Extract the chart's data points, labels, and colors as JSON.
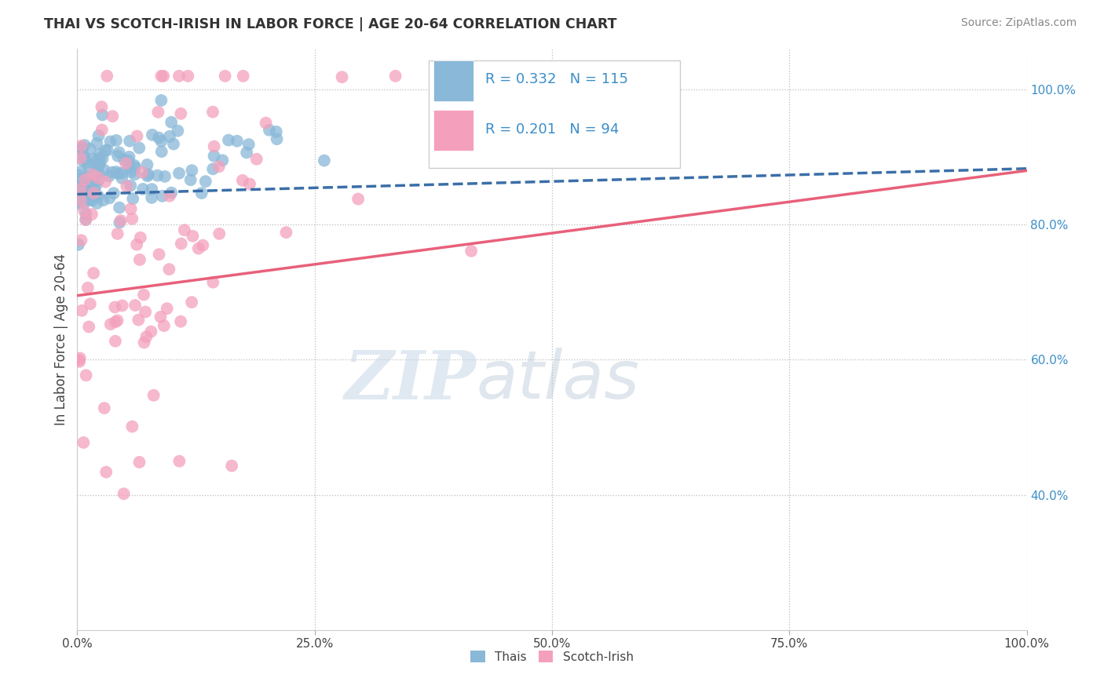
{
  "title": "THAI VS SCOTCH-IRISH IN LABOR FORCE | AGE 20-64 CORRELATION CHART",
  "source": "Source: ZipAtlas.com",
  "ylabel": "In Labor Force | Age 20-64",
  "xlim": [
    0.0,
    1.0
  ],
  "ylim": [
    0.2,
    1.06
  ],
  "xticks": [
    0.0,
    0.25,
    0.5,
    0.75,
    1.0
  ],
  "yticks": [
    0.4,
    0.6,
    0.8,
    1.0
  ],
  "ytick_labels": [
    "40.0%",
    "60.0%",
    "80.0%",
    "100.0%"
  ],
  "xtick_labels": [
    "0.0%",
    "25.0%",
    "50.0%",
    "75.0%",
    "100.0%"
  ],
  "blue_color": "#89B8D8",
  "pink_color": "#F4A0BC",
  "blue_line_color": "#3A6EA8",
  "pink_line_color": "#E8607A",
  "legend_R_blue": "R = 0.332",
  "legend_N_blue": "N = 115",
  "legend_R_pink": "R = 0.201",
  "legend_N_pink": "N = 94",
  "legend_label_blue": "Thais",
  "legend_label_pink": "Scotch-Irish",
  "watermark_zip": "ZIP",
  "watermark_atlas": "atlas",
  "blue_R": 0.332,
  "blue_N": 115,
  "pink_R": 0.201,
  "pink_N": 94,
  "seed": 42,
  "blue_intercept": 0.845,
  "blue_slope": 0.038,
  "pink_intercept": 0.695,
  "pink_slope": 0.185
}
